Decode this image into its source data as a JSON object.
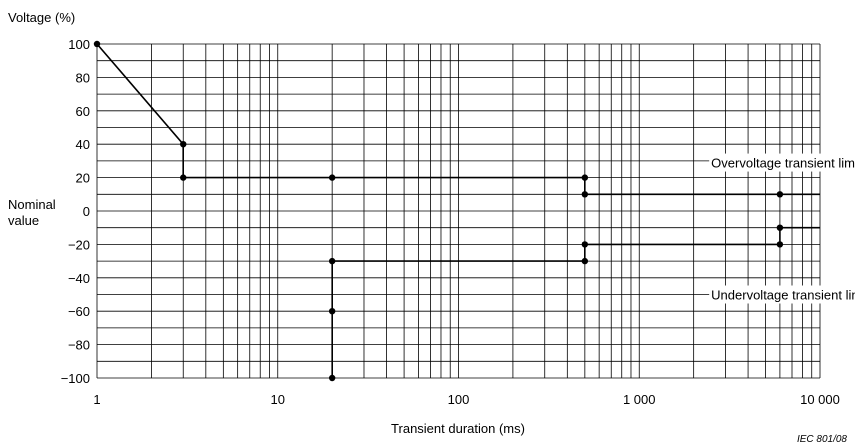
{
  "chart_data": {
    "type": "line",
    "title": "",
    "ylabel": "Voltage (%)",
    "xlabel": "Transient duration  (ms)",
    "nominal_label_line1": "Nominal",
    "nominal_label_line2": "value",
    "x_scale": "log",
    "xlim": [
      1,
      10000
    ],
    "ylim": [
      -100,
      100
    ],
    "grid": true,
    "x_ticks": [
      {
        "value": 1,
        "label": "1"
      },
      {
        "value": 10,
        "label": "10"
      },
      {
        "value": 100,
        "label": "100"
      },
      {
        "value": 1000,
        "label": "1 000"
      },
      {
        "value": 10000,
        "label": "10 000"
      }
    ],
    "y_ticks": [
      {
        "value": 100,
        "label": "100"
      },
      {
        "value": 80,
        "label": "80"
      },
      {
        "value": 60,
        "label": "60"
      },
      {
        "value": 40,
        "label": "40"
      },
      {
        "value": 20,
        "label": "20"
      },
      {
        "value": 0,
        "label": "0"
      },
      {
        "value": -20,
        "label": "−20"
      },
      {
        "value": -40,
        "label": "−40"
      },
      {
        "value": -60,
        "label": "−60"
      },
      {
        "value": -80,
        "label": "−80"
      },
      {
        "value": -100,
        "label": "−100"
      }
    ],
    "series": [
      {
        "name": "Overvoltage transient limit",
        "points": [
          [
            1,
            100
          ],
          [
            3,
            40
          ],
          [
            3,
            20
          ],
          [
            20,
            20
          ],
          [
            500,
            20
          ],
          [
            500,
            10
          ],
          [
            6000,
            10
          ],
          [
            10000,
            10
          ]
        ],
        "markers": [
          [
            1,
            100
          ],
          [
            3,
            40
          ],
          [
            3,
            20
          ],
          [
            20,
            20
          ],
          [
            500,
            20
          ],
          [
            500,
            10
          ],
          [
            6000,
            10
          ]
        ]
      },
      {
        "name": "Undervoltage transient limit",
        "points": [
          [
            20,
            -100
          ],
          [
            20,
            -60
          ],
          [
            20,
            -30
          ],
          [
            500,
            -30
          ],
          [
            500,
            -20
          ],
          [
            6000,
            -20
          ],
          [
            6000,
            -10
          ],
          [
            10000,
            -10
          ]
        ],
        "markers": [
          [
            20,
            -100
          ],
          [
            20,
            -60
          ],
          [
            20,
            -30
          ],
          [
            500,
            -30
          ],
          [
            500,
            -20
          ],
          [
            6000,
            -20
          ],
          [
            6000,
            -10
          ]
        ]
      }
    ],
    "annotations": [
      {
        "text": "Overvoltage transient limit",
        "x": 2500,
        "y": 29
      },
      {
        "text": "Undervoltage transient limit",
        "x": 2500,
        "y": -50
      }
    ],
    "reference": "IEC   801/08"
  }
}
